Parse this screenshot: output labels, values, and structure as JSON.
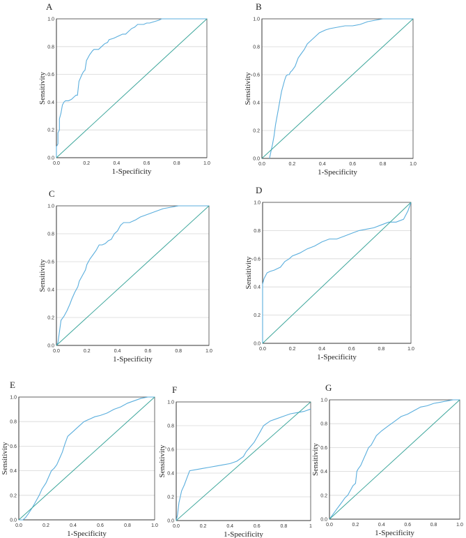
{
  "figure": {
    "colors": {
      "roc": "#5aaedd",
      "reference": "#3aa59a",
      "grid": "#d6d6d6"
    }
  },
  "chart_data": [
    {
      "panel": "A",
      "type": "line",
      "xlabel": "1-Specificity",
      "ylabel": "Sensitivity",
      "xlim": [
        0,
        1
      ],
      "ylim": [
        0,
        1
      ],
      "grid": "horizontal",
      "xticks": [
        "0.0",
        "0.2",
        "0.4",
        "0.6",
        "0.8",
        "1.0"
      ],
      "yticks": [
        "0.0",
        "0.2",
        "0.4",
        "0.6",
        "0.8",
        "1.0"
      ],
      "series": [
        {
          "role": "roc",
          "x": [
            0,
            0,
            0.01,
            0.01,
            0.02,
            0.02,
            0.03,
            0.04,
            0.05,
            0.06,
            0.08,
            0.1,
            0.12,
            0.13,
            0.14,
            0.15,
            0.17,
            0.18,
            0.19,
            0.2,
            0.22,
            0.24,
            0.25,
            0.28,
            0.3,
            0.32,
            0.34,
            0.35,
            0.38,
            0.4,
            0.42,
            0.44,
            0.46,
            0.48,
            0.5,
            0.52,
            0.54,
            0.56,
            0.58,
            0.6,
            0.62,
            0.65,
            0.68,
            0.7,
            0.74,
            0.8,
            0.9,
            1.0
          ],
          "y": [
            0,
            0.08,
            0.1,
            0.18,
            0.2,
            0.28,
            0.32,
            0.38,
            0.4,
            0.41,
            0.41,
            0.42,
            0.44,
            0.45,
            0.45,
            0.55,
            0.6,
            0.62,
            0.63,
            0.7,
            0.74,
            0.77,
            0.78,
            0.78,
            0.8,
            0.82,
            0.83,
            0.85,
            0.86,
            0.87,
            0.88,
            0.89,
            0.89,
            0.91,
            0.93,
            0.94,
            0.96,
            0.96,
            0.96,
            0.97,
            0.97,
            0.98,
            0.99,
            1.0,
            1.0,
            1.0,
            1.0,
            1.0
          ]
        },
        {
          "role": "reference",
          "x": [
            0,
            1
          ],
          "y": [
            0,
            1
          ]
        }
      ]
    },
    {
      "panel": "B",
      "type": "line",
      "xlabel": "1-Specificity",
      "ylabel": "Sensitivity",
      "xlim": [
        0,
        1
      ],
      "ylim": [
        0,
        1
      ],
      "grid": "horizontal",
      "xticks": [
        "0.0",
        "0.2",
        "0.4",
        "0.6",
        "0.8",
        "1.0"
      ],
      "yticks": [
        "0.0",
        "0.2",
        "0.4",
        "0.6",
        "0.8",
        "1.0"
      ],
      "series": [
        {
          "role": "roc",
          "x": [
            0.05,
            0.06,
            0.07,
            0.08,
            0.09,
            0.1,
            0.11,
            0.12,
            0.13,
            0.14,
            0.15,
            0.16,
            0.17,
            0.18,
            0.19,
            0.2,
            0.22,
            0.24,
            0.26,
            0.28,
            0.3,
            0.32,
            0.34,
            0.36,
            0.38,
            0.4,
            0.42,
            0.45,
            0.5,
            0.55,
            0.6,
            0.65,
            0.7,
            0.75,
            0.8,
            0.9,
            1.0
          ],
          "y": [
            0,
            0.05,
            0.1,
            0.16,
            0.24,
            0.3,
            0.36,
            0.42,
            0.48,
            0.52,
            0.56,
            0.59,
            0.6,
            0.6,
            0.62,
            0.63,
            0.66,
            0.72,
            0.75,
            0.78,
            0.82,
            0.84,
            0.86,
            0.88,
            0.9,
            0.91,
            0.92,
            0.93,
            0.94,
            0.95,
            0.95,
            0.96,
            0.98,
            0.99,
            1.0,
            1.0,
            1.0
          ]
        },
        {
          "role": "reference",
          "x": [
            0,
            1
          ],
          "y": [
            0,
            1
          ]
        }
      ]
    },
    {
      "panel": "C",
      "type": "line",
      "xlabel": "1-Specificity",
      "ylabel": "Sensitivity",
      "xlim": [
        0,
        1
      ],
      "ylim": [
        0,
        1
      ],
      "grid": "horizontal",
      "xticks": [
        "0.0",
        "0.2",
        "0.4",
        "0.6",
        "0.8",
        "1.0"
      ],
      "yticks": [
        "0.0",
        "0.2",
        "0.4",
        "0.6",
        "0.8",
        "1.0"
      ],
      "series": [
        {
          "role": "roc",
          "x": [
            0,
            0.01,
            0.02,
            0.03,
            0.05,
            0.07,
            0.09,
            0.1,
            0.12,
            0.14,
            0.15,
            0.17,
            0.19,
            0.2,
            0.22,
            0.24,
            0.26,
            0.28,
            0.3,
            0.32,
            0.34,
            0.36,
            0.38,
            0.4,
            0.42,
            0.44,
            0.46,
            0.48,
            0.5,
            0.52,
            0.55,
            0.6,
            0.65,
            0.7,
            0.75,
            0.8,
            0.9,
            1.0
          ],
          "y": [
            0,
            0.02,
            0.1,
            0.18,
            0.21,
            0.25,
            0.3,
            0.33,
            0.38,
            0.42,
            0.46,
            0.5,
            0.54,
            0.58,
            0.62,
            0.65,
            0.68,
            0.72,
            0.72,
            0.73,
            0.75,
            0.76,
            0.8,
            0.82,
            0.86,
            0.88,
            0.88,
            0.88,
            0.89,
            0.9,
            0.92,
            0.94,
            0.96,
            0.98,
            0.99,
            1.0,
            1.0,
            1.0
          ]
        },
        {
          "role": "reference",
          "x": [
            0,
            1
          ],
          "y": [
            0,
            1
          ]
        }
      ]
    },
    {
      "panel": "D",
      "type": "line",
      "xlabel": "1-Specificity",
      "ylabel": "Sensitivity",
      "xlim": [
        0,
        1
      ],
      "ylim": [
        0,
        1
      ],
      "grid": "horizontal",
      "xticks": [
        "0.0",
        "0.2",
        "0.4",
        "0.6",
        "0.8",
        "1.0"
      ],
      "yticks": [
        "0.0",
        "0.2",
        "0.4",
        "0.6",
        "0.8",
        "1.0"
      ],
      "series": [
        {
          "role": "roc",
          "x": [
            0,
            0,
            0.01,
            0.02,
            0.03,
            0.05,
            0.08,
            0.1,
            0.12,
            0.15,
            0.18,
            0.2,
            0.25,
            0.3,
            0.35,
            0.4,
            0.45,
            0.5,
            0.55,
            0.6,
            0.65,
            0.7,
            0.75,
            0.8,
            0.85,
            0.9,
            0.95,
            0.98,
            1.0
          ],
          "y": [
            0,
            0.42,
            0.46,
            0.48,
            0.5,
            0.51,
            0.52,
            0.53,
            0.54,
            0.58,
            0.6,
            0.62,
            0.64,
            0.67,
            0.69,
            0.72,
            0.74,
            0.74,
            0.76,
            0.78,
            0.8,
            0.81,
            0.82,
            0.84,
            0.86,
            0.86,
            0.88,
            0.94,
            1.0
          ]
        },
        {
          "role": "reference",
          "x": [
            0,
            1
          ],
          "y": [
            0,
            1
          ]
        }
      ]
    },
    {
      "panel": "E",
      "type": "line",
      "xlabel": "1-Specificity",
      "ylabel": "Sensitivity",
      "xlim": [
        0,
        1
      ],
      "ylim": [
        0,
        1
      ],
      "grid": "horizontal",
      "xticks": [
        "0.0",
        "0.2",
        "0.4",
        "0.6",
        "0.8",
        "1.0"
      ],
      "yticks": [
        "0.0",
        "0.2",
        "0.4",
        "0.6",
        "0.8",
        "1.0"
      ],
      "series": [
        {
          "role": "roc",
          "x": [
            0,
            0.03,
            0.05,
            0.07,
            0.1,
            0.12,
            0.15,
            0.17,
            0.2,
            0.22,
            0.24,
            0.26,
            0.28,
            0.3,
            0.32,
            0.34,
            0.36,
            0.38,
            0.4,
            0.44,
            0.48,
            0.52,
            0.56,
            0.6,
            0.65,
            0.7,
            0.75,
            0.8,
            0.85,
            0.9,
            0.95,
            1.0
          ],
          "y": [
            0,
            0,
            0.02,
            0.05,
            0.1,
            0.14,
            0.2,
            0.25,
            0.3,
            0.35,
            0.4,
            0.42,
            0.45,
            0.5,
            0.55,
            0.62,
            0.68,
            0.7,
            0.72,
            0.76,
            0.8,
            0.82,
            0.84,
            0.85,
            0.87,
            0.9,
            0.92,
            0.95,
            0.97,
            0.99,
            1.0,
            1.0
          ]
        },
        {
          "role": "reference",
          "x": [
            0,
            1
          ],
          "y": [
            0,
            1
          ]
        }
      ]
    },
    {
      "panel": "F",
      "type": "line",
      "xlabel": "1-Specificity",
      "ylabel": "Sensitivity",
      "xlim": [
        0,
        1
      ],
      "ylim": [
        0,
        1
      ],
      "grid": "horizontal",
      "xticks": [
        "0.0",
        "0.2",
        "0.4",
        "0.6",
        "0.8",
        "1"
      ],
      "yticks": [
        "0.0",
        "0.2",
        "0.4",
        "0.6",
        "0.8",
        "1.0"
      ],
      "series": [
        {
          "role": "roc",
          "x": [
            0,
            0.01,
            0.02,
            0.03,
            0.04,
            0.06,
            0.08,
            0.1,
            0.15,
            0.2,
            0.25,
            0.3,
            0.35,
            0.4,
            0.45,
            0.5,
            0.52,
            0.55,
            0.58,
            0.6,
            0.62,
            0.65,
            0.7,
            0.75,
            0.8,
            0.85,
            0.9,
            0.95,
            1.0
          ],
          "y": [
            0,
            0.05,
            0.15,
            0.2,
            0.25,
            0.3,
            0.36,
            0.42,
            0.43,
            0.44,
            0.45,
            0.46,
            0.47,
            0.48,
            0.5,
            0.54,
            0.58,
            0.62,
            0.66,
            0.7,
            0.74,
            0.8,
            0.84,
            0.86,
            0.88,
            0.9,
            0.91,
            0.92,
            0.94
          ]
        },
        {
          "role": "reference",
          "x": [
            0,
            1
          ],
          "y": [
            0,
            1
          ]
        }
      ]
    },
    {
      "panel": "G",
      "type": "line",
      "xlabel": "1-Specificity",
      "ylabel": "Sensitivity",
      "xlim": [
        0,
        1
      ],
      "ylim": [
        0,
        1
      ],
      "grid": "horizontal",
      "xticks": [
        "0.0",
        "0.2",
        "0.4",
        "0.6",
        "0.8",
        "1.0"
      ],
      "yticks": [
        "0.0",
        "0.2",
        "0.4",
        "0.6",
        "0.8",
        "1.0"
      ],
      "series": [
        {
          "role": "roc",
          "x": [
            0,
            0.02,
            0.04,
            0.06,
            0.08,
            0.1,
            0.12,
            0.14,
            0.16,
            0.18,
            0.2,
            0.21,
            0.22,
            0.24,
            0.26,
            0.28,
            0.3,
            0.32,
            0.34,
            0.36,
            0.4,
            0.45,
            0.5,
            0.55,
            0.6,
            0.65,
            0.7,
            0.75,
            0.8,
            0.85,
            0.9,
            0.95,
            1.0
          ],
          "y": [
            0,
            0.03,
            0.06,
            0.09,
            0.12,
            0.15,
            0.18,
            0.2,
            0.24,
            0.28,
            0.3,
            0.4,
            0.42,
            0.45,
            0.5,
            0.55,
            0.6,
            0.62,
            0.66,
            0.7,
            0.74,
            0.78,
            0.82,
            0.86,
            0.88,
            0.91,
            0.94,
            0.95,
            0.97,
            0.98,
            0.99,
            1.0,
            1.0
          ]
        },
        {
          "role": "reference",
          "x": [
            0,
            1
          ],
          "y": [
            0,
            1
          ]
        }
      ]
    }
  ]
}
